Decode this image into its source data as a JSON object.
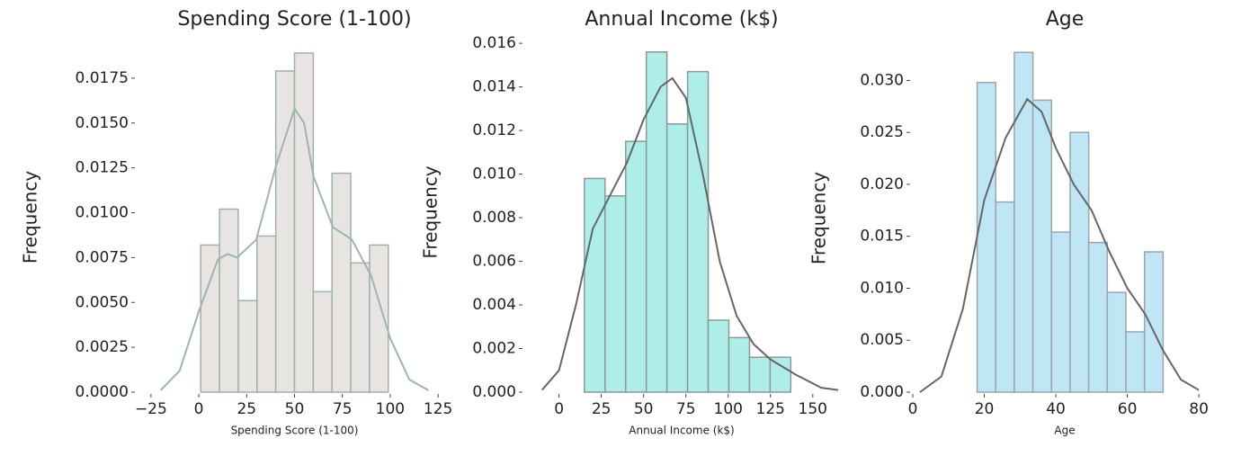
{
  "chart_data": [
    {
      "type": "histogram",
      "title": "Spending Score (1-100)",
      "xlabel": "Spending Score (1-100)",
      "ylabel": "Frequency",
      "bins": [
        1,
        10.8,
        20.6,
        30.4,
        40.2,
        50,
        59.8,
        69.6,
        79.4,
        89.2,
        99
      ],
      "values": [
        0.0082,
        0.0102,
        0.0051,
        0.0087,
        0.0179,
        0.0189,
        0.0056,
        0.0122,
        0.0072,
        0.0082
      ],
      "color": "#e8e4e1",
      "edge_color": "#9fb0ae",
      "kde": {
        "x": [
          -20,
          -10,
          0,
          10,
          15,
          20,
          30,
          40,
          50,
          55,
          60,
          70,
          80,
          90,
          100,
          110,
          120
        ],
        "values": [
          0.0001,
          0.0012,
          0.0045,
          0.0074,
          0.0077,
          0.0075,
          0.0085,
          0.0125,
          0.0158,
          0.015,
          0.012,
          0.0092,
          0.0085,
          0.0065,
          0.003,
          0.0007,
          0.0001
        ],
        "color": "#9db5b2"
      },
      "xlim": [
        -32,
        132
      ],
      "ylim": [
        0,
        0.0195
      ],
      "xticks": [
        {
          "value": -25,
          "label": "−25"
        },
        0,
        25,
        50,
        75,
        100,
        125
      ],
      "yticks": [
        {
          "value": 0,
          "label": "0.0000"
        },
        {
          "value": 0.0025,
          "label": "0.0025"
        },
        {
          "value": 0.005,
          "label": "0.0050"
        },
        {
          "value": 0.0075,
          "label": "0.0075"
        },
        {
          "value": 0.01,
          "label": "0.0100"
        },
        {
          "value": 0.0125,
          "label": "0.0125"
        },
        {
          "value": 0.015,
          "label": "0.0150"
        },
        {
          "value": 0.0175,
          "label": "0.0175"
        }
      ]
    },
    {
      "type": "histogram",
      "title": "Annual Income (k$)",
      "xlabel": "Annual Income (k$)",
      "ylabel": "Frequency",
      "bins": [
        15,
        27.2,
        39.4,
        51.6,
        63.8,
        76,
        88.2,
        100.4,
        112.6,
        124.8,
        137
      ],
      "values": [
        0.0098,
        0.009,
        0.0115,
        0.0156,
        0.0123,
        0.0147,
        0.0033,
        0.0025,
        0.0016,
        0.0016
      ],
      "color": "#aeeee8",
      "edge_color": "#8a9a98",
      "kde": {
        "x": [
          -10,
          0,
          10,
          20,
          30,
          40,
          50,
          60,
          67,
          75,
          85,
          95,
          105,
          115,
          125,
          140,
          155,
          165
        ],
        "values": [
          0.0001,
          0.001,
          0.004,
          0.0075,
          0.009,
          0.0105,
          0.0125,
          0.014,
          0.0144,
          0.0135,
          0.01,
          0.006,
          0.0035,
          0.0022,
          0.0015,
          0.0008,
          0.0002,
          0.0001
        ],
        "color": "#666666"
      },
      "xlim": [
        -20,
        165
      ],
      "ylim": [
        0,
        0.0165
      ],
      "xticks": [
        0,
        25,
        50,
        75,
        100,
        125,
        150
      ],
      "yticks": [
        {
          "value": 0,
          "label": "0.000"
        },
        {
          "value": 0.002,
          "label": "0.002"
        },
        {
          "value": 0.004,
          "label": "0.004"
        },
        {
          "value": 0.006,
          "label": "0.006"
        },
        {
          "value": 0.008,
          "label": "0.008"
        },
        {
          "value": 0.01,
          "label": "0.010"
        },
        {
          "value": 0.012,
          "label": "0.012"
        },
        {
          "value": 0.014,
          "label": "0.014"
        },
        {
          "value": 0.016,
          "label": "0.016"
        }
      ]
    },
    {
      "type": "histogram",
      "title": "Age",
      "xlabel": "Age",
      "ylabel": "Frequency",
      "bins": [
        18,
        23.2,
        28.4,
        33.6,
        38.8,
        44,
        49.2,
        54.4,
        59.6,
        64.8,
        70
      ],
      "values": [
        0.0298,
        0.0183,
        0.0327,
        0.0281,
        0.0154,
        0.025,
        0.0144,
        0.0096,
        0.0058,
        0.0135
      ],
      "color": "#bfe6f5",
      "edge_color": "#9aa6aa",
      "kde": {
        "x": [
          2,
          8,
          14,
          20,
          26,
          32,
          36,
          40,
          45,
          50,
          55,
          60,
          65,
          70,
          75,
          80
        ],
        "values": [
          0,
          0.0015,
          0.008,
          0.0185,
          0.0245,
          0.0282,
          0.027,
          0.0235,
          0.02,
          0.0175,
          0.0135,
          0.01,
          0.0075,
          0.004,
          0.0012,
          0.0002
        ],
        "color": "#666666"
      },
      "xlim": [
        0,
        85
      ],
      "ylim": [
        0,
        0.0335
      ],
      "xticks": [
        0,
        20,
        40,
        60,
        80
      ],
      "yticks": [
        {
          "value": 0,
          "label": "0.000"
        },
        {
          "value": 0.005,
          "label": "0.005"
        },
        {
          "value": 0.01,
          "label": "0.010"
        },
        {
          "value": 0.015,
          "label": "0.015"
        },
        {
          "value": 0.02,
          "label": "0.020"
        },
        {
          "value": 0.025,
          "label": "0.025"
        },
        {
          "value": 0.03,
          "label": "0.030"
        }
      ]
    }
  ]
}
